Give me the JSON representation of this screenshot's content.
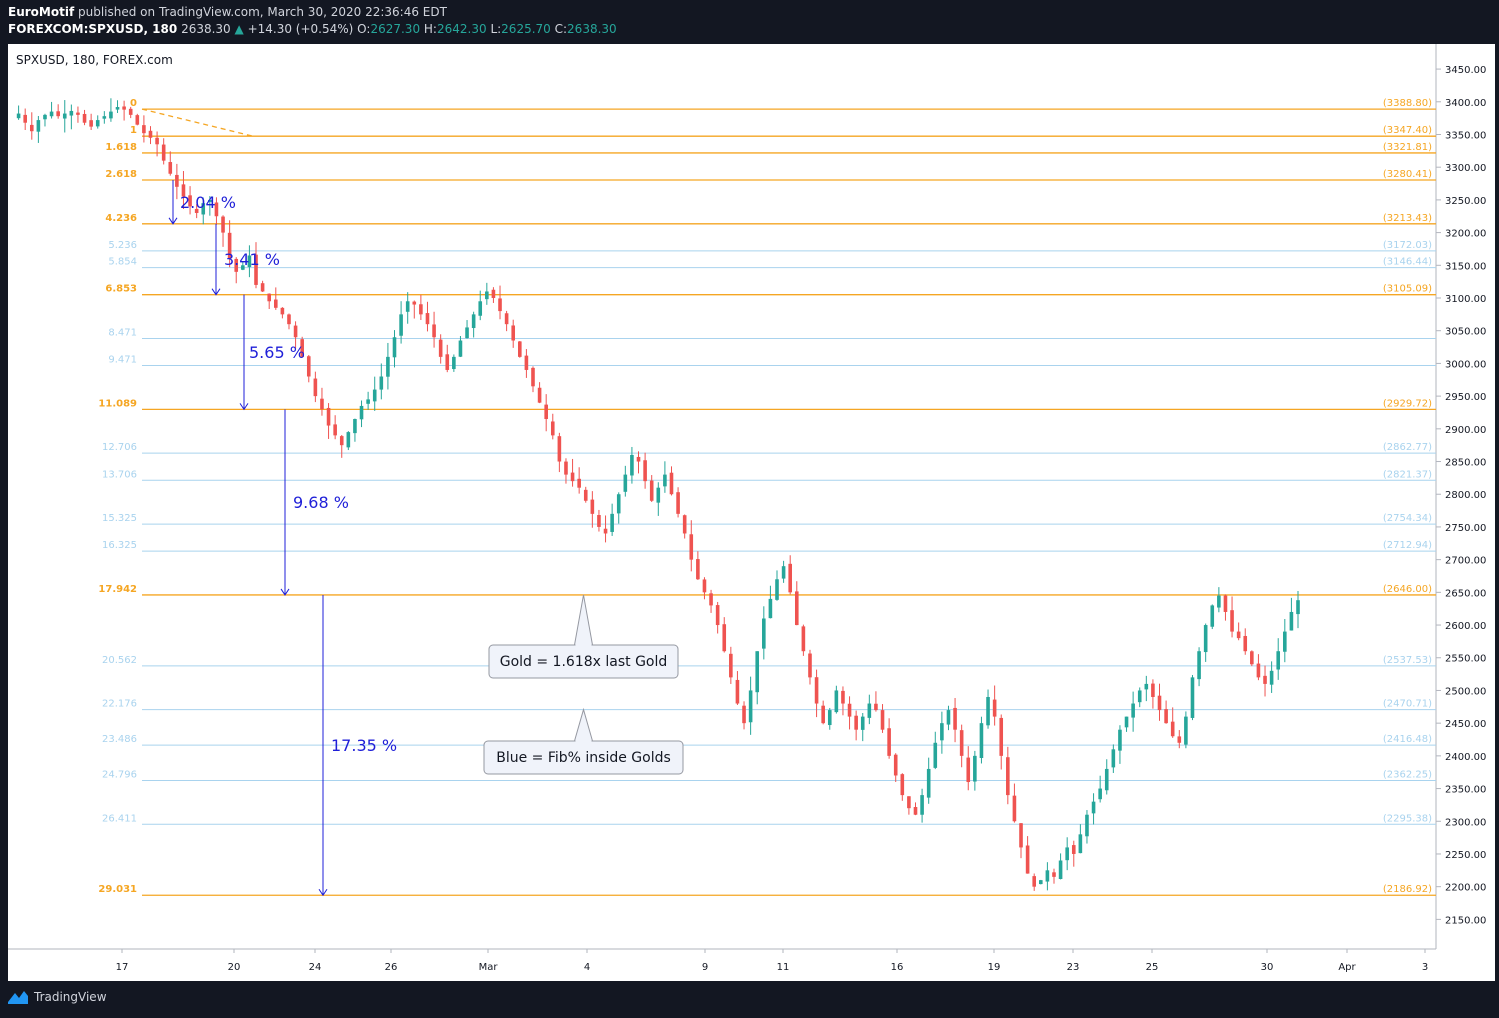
{
  "header": {
    "author": "EuroMotif",
    "published": "published on TradingView.com, March 30, 2020 22:36:46 EDT",
    "symbol": "FOREXCOM:SPXUSD, 180",
    "last": "2638.30",
    "change": "+14.30 (+0.54%)",
    "o_label": "O:",
    "o": "2627.30",
    "h_label": "H:",
    "h": "2642.30",
    "l_label": "L:",
    "l": "2625.70",
    "c_label": "C:",
    "c": "2638.30"
  },
  "footer": {
    "brand": "TradingView"
  },
  "colors": {
    "gold": "#f5a623",
    "fib_blue": "#a9d3ee",
    "up": "#26a69a",
    "down": "#ef5350",
    "measure": "#1f1fd8"
  },
  "chart_data": {
    "type": "candlestick",
    "title": "SPXUSD, 180, FOREX.com",
    "ylim": [
      2120,
      3470
    ],
    "y_ticks": [
      3450,
      3400,
      3350,
      3300,
      3250,
      3200,
      3150,
      3100,
      3050,
      3000,
      2950,
      2900,
      2850,
      2800,
      2750,
      2700,
      2650,
      2600,
      2550,
      2500,
      2450,
      2400,
      2350,
      2300,
      2250,
      2200,
      2150
    ],
    "x_labels": [
      "17",
      "20",
      "24",
      "26",
      "Mar",
      "4",
      "9",
      "11",
      "16",
      "19",
      "23",
      "25",
      "30",
      "Apr",
      "3"
    ],
    "fib_levels": [
      {
        "ratio": "0",
        "price": 3388.8,
        "label": "(3388.80)",
        "kind": "gold"
      },
      {
        "ratio": "1",
        "price": 3347.4,
        "label": "(3347.40)",
        "kind": "gold"
      },
      {
        "ratio": "1.618",
        "price": 3321.81,
        "label": "(3321.81)",
        "kind": "gold"
      },
      {
        "ratio": "2.618",
        "price": 3280.41,
        "label": "(3280.41)",
        "kind": "gold"
      },
      {
        "ratio": "4.236",
        "price": 3213.43,
        "label": "(3213.43)",
        "kind": "gold"
      },
      {
        "ratio": "5.236",
        "price": 3172.03,
        "label": "(3172.03)",
        "kind": "blue"
      },
      {
        "ratio": "5.854",
        "price": 3146.44,
        "label": "(3146.44)",
        "kind": "blue"
      },
      {
        "ratio": "6.853",
        "price": 3105.09,
        "label": "(3105.09)",
        "kind": "gold"
      },
      {
        "ratio": "8.471",
        "price": 3038.11,
        "label": "",
        "kind": "blue"
      },
      {
        "ratio": "9.471",
        "price": 2996.72,
        "label": "",
        "kind": "blue"
      },
      {
        "ratio": "11.089",
        "price": 2929.72,
        "label": "(2929.72)",
        "kind": "gold"
      },
      {
        "ratio": "12.706",
        "price": 2862.77,
        "label": "(2862.77)",
        "kind": "blue"
      },
      {
        "ratio": "13.706",
        "price": 2821.37,
        "label": "(2821.37)",
        "kind": "blue"
      },
      {
        "ratio": "15.325",
        "price": 2754.34,
        "label": "(2754.34)",
        "kind": "blue"
      },
      {
        "ratio": "16.325",
        "price": 2712.94,
        "label": "(2712.94)",
        "kind": "blue"
      },
      {
        "ratio": "17.942",
        "price": 2646.0,
        "label": "(2646.00)",
        "kind": "gold"
      },
      {
        "ratio": "20.562",
        "price": 2537.53,
        "label": "(2537.53)",
        "kind": "blue"
      },
      {
        "ratio": "22.176",
        "price": 2470.71,
        "label": "(2470.71)",
        "kind": "blue"
      },
      {
        "ratio": "23.486",
        "price": 2416.48,
        "label": "(2416.48)",
        "kind": "blue"
      },
      {
        "ratio": "24.796",
        "price": 2362.25,
        "label": "(2362.25)",
        "kind": "blue"
      },
      {
        "ratio": "26.411",
        "price": 2295.38,
        "label": "(2295.38)",
        "kind": "blue"
      },
      {
        "ratio": "29.031",
        "price": 2186.92,
        "label": "(2186.92)",
        "kind": "gold"
      }
    ],
    "measures": [
      {
        "from": 3280.41,
        "to": 3213.43,
        "label": "2.04 %"
      },
      {
        "from": 3213.43,
        "to": 3105.09,
        "label": "3.41 %"
      },
      {
        "from": 3105.09,
        "to": 2929.72,
        "label": "5.65 %"
      },
      {
        "from": 2929.72,
        "to": 2646.0,
        "label": "9.68 %"
      },
      {
        "from": 2646.0,
        "to": 2186.92,
        "label": "17.35 %"
      }
    ],
    "callouts": [
      {
        "text": "Gold = 1.618x last Gold"
      },
      {
        "text": "Blue = Fib% inside Golds"
      }
    ],
    "path_closes": [
      3375,
      3382,
      3368,
      3355,
      3372,
      3380,
      3385,
      3378,
      3382,
      3386,
      3380,
      3368,
      3362,
      3372,
      3378,
      3385,
      3392,
      3388,
      3380,
      3365,
      3352,
      3345,
      3335,
      3310,
      3290,
      3270,
      3255,
      3240,
      3230,
      3245,
      3250,
      3225,
      3200,
      3160,
      3140,
      3150,
      3165,
      3120,
      3110,
      3095,
      3085,
      3075,
      3060,
      3040,
      3010,
      2980,
      2950,
      2930,
      2905,
      2890,
      2875,
      2895,
      2915,
      2935,
      2945,
      2960,
      2980,
      3010,
      3040,
      3075,
      3095,
      3090,
      3075,
      3060,
      3040,
      3010,
      2990,
      3010,
      3035,
      3055,
      3075,
      3095,
      3110,
      3100,
      3080,
      3060,
      3035,
      3010,
      2990,
      2965,
      2940,
      2915,
      2890,
      2850,
      2830,
      2820,
      2810,
      2790,
      2770,
      2750,
      2740,
      2770,
      2800,
      2830,
      2860,
      2850,
      2820,
      2790,
      2810,
      2830,
      2800,
      2770,
      2740,
      2700,
      2670,
      2650,
      2630,
      2600,
      2560,
      2520,
      2480,
      2450,
      2500,
      2560,
      2610,
      2640,
      2670,
      2690,
      2650,
      2600,
      2560,
      2520,
      2480,
      2450,
      2470,
      2500,
      2480,
      2460,
      2440,
      2460,
      2480,
      2470,
      2440,
      2400,
      2370,
      2340,
      2320,
      2310,
      2340,
      2380,
      2420,
      2450,
      2470,
      2440,
      2400,
      2360,
      2400,
      2450,
      2490,
      2460,
      2400,
      2340,
      2300,
      2260,
      2220,
      2200,
      2210,
      2225,
      2215,
      2240,
      2260,
      2250,
      2280,
      2310,
      2330,
      2350,
      2380,
      2410,
      2440,
      2460,
      2480,
      2500,
      2510,
      2490,
      2470,
      2450,
      2430,
      2420,
      2460,
      2520,
      2560,
      2600,
      2630,
      2645,
      2620,
      2590,
      2580,
      2560,
      2540,
      2520,
      2510,
      2530,
      2560,
      2590,
      2620,
      2638
    ]
  }
}
